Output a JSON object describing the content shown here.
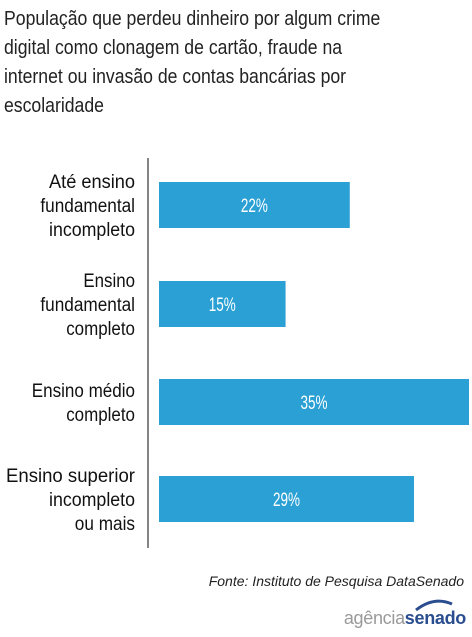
{
  "chart_data": {
    "type": "bar",
    "orientation": "horizontal",
    "title": "População que perdeu dinheiro por algum crime digital como clonagem de cartão, fraude na internet ou invasão de contas bancárias por escolaridade",
    "categories": [
      [
        "Até ensino",
        "fundamental",
        "incompleto"
      ],
      [
        "Ensino",
        "fundamental",
        "completo"
      ],
      [
        "Ensino médio",
        "completo"
      ],
      [
        "Ensino superior",
        "incompleto",
        "ou mais"
      ]
    ],
    "values": [
      22,
      15,
      35,
      29
    ],
    "value_labels": [
      "22%",
      "15%",
      "35%",
      "29%"
    ],
    "xlim": [
      0,
      35
    ],
    "bar_color": "#2aa0d4",
    "grid": false
  },
  "source": "Fonte: Instituto de Pesquisa DataSenado",
  "logo": {
    "part1": "agência",
    "part2": "senado"
  }
}
